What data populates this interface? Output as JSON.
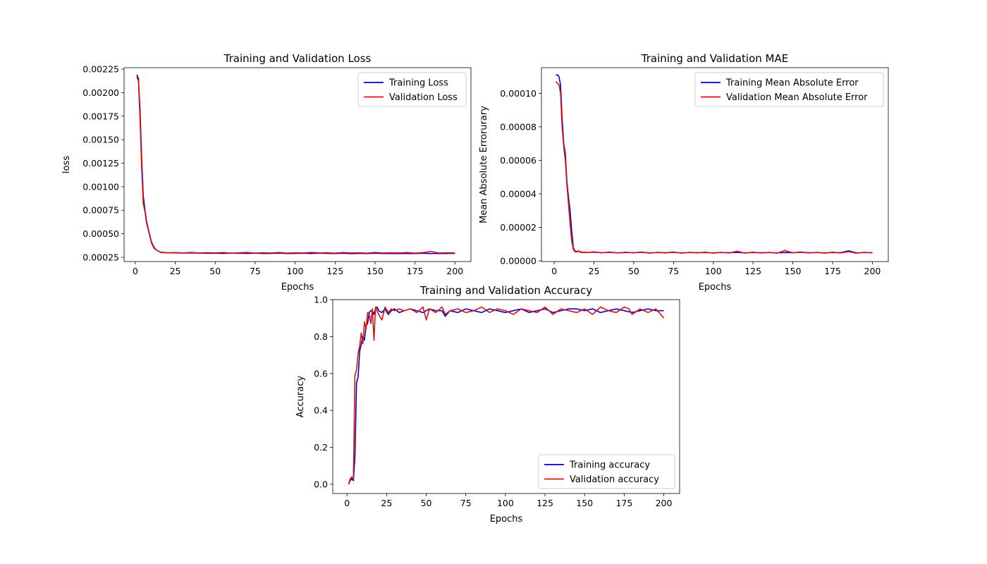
{
  "figure": {
    "background": "#ffffff"
  },
  "chart_data": [
    {
      "id": "loss",
      "type": "line",
      "title": "Training and Validation Loss",
      "xlabel": "Epochs",
      "ylabel": "loss",
      "xlim": [
        -7,
        210
      ],
      "ylim": [
        0.000205,
        0.002265
      ],
      "xticks": [
        0,
        25,
        50,
        75,
        100,
        125,
        150,
        175,
        200
      ],
      "xtick_labels": [
        "0",
        "25",
        "50",
        "75",
        "100",
        "125",
        "150",
        "175",
        "200"
      ],
      "yticks": [
        0.00025,
        0.0005,
        0.00075,
        0.001,
        0.00125,
        0.0015,
        0.00175,
        0.002,
        0.00225
      ],
      "ytick_labels": [
        "0.00025",
        "0.00050",
        "0.00075",
        "0.00100",
        "0.00125",
        "0.00150",
        "0.00175",
        "0.00200",
        "0.00225"
      ],
      "grid": false,
      "legend_position": "top-right",
      "series": [
        {
          "name": "Training Loss",
          "color": "#0000cc",
          "x": [
            1,
            2,
            3,
            4,
            5,
            6,
            7,
            8,
            9,
            10,
            11,
            12,
            13,
            14,
            15,
            16,
            17,
            18,
            19,
            20,
            25,
            30,
            35,
            40,
            45,
            50,
            55,
            60,
            65,
            70,
            75,
            80,
            85,
            90,
            95,
            100,
            105,
            110,
            115,
            120,
            125,
            130,
            135,
            140,
            145,
            150,
            155,
            160,
            165,
            170,
            175,
            180,
            185,
            190,
            195,
            200
          ],
          "y": [
            0.00219,
            0.00215,
            0.0018,
            0.0013,
            0.0009,
            0.00076,
            0.00064,
            0.00056,
            0.00049,
            0.00042,
            0.00038,
            0.00035,
            0.00033,
            0.00032,
            0.00031,
            0.000305,
            0.0003,
            0.0003,
            0.000298,
            0.000298,
            0.000297,
            0.000295,
            0.000297,
            0.000294,
            0.000293,
            0.000294,
            0.000292,
            0.000295,
            0.000293,
            0.000292,
            0.000294,
            0.000291,
            0.000292,
            0.000294,
            0.000291,
            0.000292,
            0.000293,
            0.000291,
            0.000294,
            0.000292,
            0.000291,
            0.000293,
            0.00029,
            0.000292,
            0.000291,
            0.000293,
            0.000291,
            0.000292,
            0.00029,
            0.000292,
            0.000291,
            0.000293,
            0.00029,
            0.000292,
            0.000291,
            0.000292
          ]
        },
        {
          "name": "Validation Loss",
          "color": "#dd1111",
          "x": [
            1,
            2,
            3,
            4,
            5,
            6,
            7,
            8,
            9,
            10,
            11,
            12,
            13,
            14,
            15,
            16,
            17,
            18,
            19,
            20,
            25,
            30,
            35,
            40,
            45,
            50,
            55,
            60,
            65,
            70,
            75,
            80,
            85,
            90,
            95,
            100,
            105,
            110,
            115,
            120,
            125,
            130,
            135,
            140,
            145,
            150,
            155,
            160,
            165,
            170,
            175,
            180,
            185,
            190,
            195,
            200
          ],
          "y": [
            0.00217,
            0.00212,
            0.0017,
            0.0012,
            0.00082,
            0.00074,
            0.00062,
            0.00055,
            0.00048,
            0.00041,
            0.00037,
            0.00034,
            0.00033,
            0.00032,
            0.00031,
            0.0003,
            0.000305,
            0.0003,
            0.000302,
            0.000296,
            0.000301,
            0.000297,
            0.000302,
            0.000296,
            0.000299,
            0.000297,
            0.000301,
            0.000295,
            0.000298,
            0.000302,
            0.000295,
            0.000299,
            0.000296,
            0.000301,
            0.000295,
            0.000298,
            0.000296,
            0.000302,
            0.000297,
            0.000299,
            0.000295,
            0.000301,
            0.000297,
            0.000298,
            0.000295,
            0.000302,
            0.000296,
            0.000298,
            0.000297,
            0.000301,
            0.000295,
            0.0003,
            0.000312,
            0.000296,
            0.000298,
            0.000297
          ]
        }
      ]
    },
    {
      "id": "mae",
      "type": "line",
      "title": "Training and Validation MAE",
      "xlabel": "Epochs",
      "ylabel": "Mean Absolute Errorurary",
      "xlim": [
        -8,
        210
      ],
      "ylim": [
        -4e-07,
        0.0001153
      ],
      "xticks": [
        0,
        25,
        50,
        75,
        100,
        125,
        150,
        175,
        200
      ],
      "xtick_labels": [
        "0",
        "25",
        "50",
        "75",
        "100",
        "125",
        "150",
        "175",
        "200"
      ],
      "yticks": [
        0,
        2e-05,
        4e-05,
        6e-05,
        8e-05,
        0.0001
      ],
      "ytick_labels": [
        "0.00000",
        "0.00002",
        "0.00004",
        "0.00006",
        "0.00008",
        "0.00010"
      ],
      "grid": false,
      "legend_position": "top-right",
      "series": [
        {
          "name": "Training Mean Absolute Error",
          "color": "#0000cc",
          "x": [
            1,
            2,
            3,
            4,
            5,
            6,
            7,
            8,
            9,
            10,
            11,
            12,
            13,
            14,
            15,
            16,
            17,
            18,
            19,
            20,
            25,
            30,
            35,
            40,
            45,
            50,
            55,
            60,
            65,
            70,
            75,
            80,
            85,
            90,
            95,
            100,
            105,
            110,
            115,
            120,
            125,
            130,
            135,
            140,
            145,
            150,
            155,
            160,
            165,
            170,
            175,
            180,
            185,
            190,
            195,
            200
          ],
          "y": [
            0.000111,
            0.000111,
            0.00011,
            0.000105,
            8.5e-05,
            7e-05,
            6.4e-05,
            4.7e-05,
            3.8e-05,
            3e-05,
            1.8e-05,
            8e-06,
            6e-06,
            5.5e-06,
            6e-06,
            5.5e-06,
            5.2e-06,
            5e-06,
            5.1e-06,
            5e-06,
            5.2e-06,
            4.9e-06,
            5.1e-06,
            4.8e-06,
            5e-06,
            4.9e-06,
            5.1e-06,
            4.8e-06,
            5e-06,
            4.9e-06,
            5.1e-06,
            4.8e-06,
            5e-06,
            4.9e-06,
            5e-06,
            4.8e-06,
            5e-06,
            4.9e-06,
            5.1e-06,
            4.8e-06,
            5e-06,
            4.9e-06,
            5e-06,
            4.8e-06,
            5e-06,
            4.9e-06,
            5.1e-06,
            4.9e-06,
            5e-06,
            4.8e-06,
            5e-06,
            4.9e-06,
            6e-06,
            4.8e-06,
            5e-06,
            4.9e-06
          ]
        },
        {
          "name": "Validation Mean Absolute Error",
          "color": "#dd1111",
          "x": [
            1,
            2,
            3,
            4,
            5,
            6,
            7,
            8,
            9,
            10,
            11,
            12,
            13,
            14,
            15,
            16,
            17,
            18,
            19,
            20,
            25,
            30,
            35,
            40,
            45,
            50,
            55,
            60,
            65,
            70,
            75,
            80,
            85,
            90,
            95,
            100,
            105,
            110,
            115,
            120,
            125,
            130,
            135,
            140,
            145,
            150,
            155,
            160,
            165,
            170,
            175,
            180,
            185,
            190,
            195,
            200
          ],
          "y": [
            0.000107,
            0.000106,
            0.000105,
            0.0001,
            8e-05,
            6.8e-05,
            6e-05,
            4.5e-05,
            3.4e-05,
            2.2e-05,
            1.2e-05,
            7e-06,
            5.5e-06,
            5.2e-06,
            6e-06,
            5.1e-06,
            5.5e-06,
            5e-06,
            5.3e-06,
            4.9e-06,
            5.4e-06,
            4.8e-06,
            5.3e-06,
            4.7e-06,
            5.2e-06,
            4.8e-06,
            5.3e-06,
            4.6e-06,
            5.1e-06,
            4.7e-06,
            5.3e-06,
            4.6e-06,
            5.1e-06,
            4.8e-06,
            5.2e-06,
            4.6e-06,
            5.1e-06,
            4.7e-06,
            5.8e-06,
            4.6e-06,
            5.2e-06,
            4.7e-06,
            5.1e-06,
            4.6e-06,
            6.2e-06,
            4.8e-06,
            5.3e-06,
            4.7e-06,
            5.1e-06,
            4.6e-06,
            5.2e-06,
            4.7e-06,
            5.5e-06,
            4.6e-06,
            5.1e-06,
            4.8e-06
          ]
        }
      ]
    },
    {
      "id": "accuracy",
      "type": "line",
      "title": "Training and Validation Accuracy",
      "xlabel": "Epochs",
      "ylabel": "Accuracy",
      "xlim": [
        -9,
        210
      ],
      "ylim": [
        -0.05,
        1.0
      ],
      "xticks": [
        0,
        25,
        50,
        75,
        100,
        125,
        150,
        175,
        200
      ],
      "xtick_labels": [
        "0",
        "25",
        "50",
        "75",
        "100",
        "125",
        "150",
        "175",
        "200"
      ],
      "yticks": [
        0,
        0.2,
        0.4,
        0.6,
        0.8,
        1.0
      ],
      "ytick_labels": [
        "0.0",
        "0.2",
        "0.4",
        "0.6",
        "0.8",
        "1.0"
      ],
      "grid": false,
      "legend_position": "bottom-right",
      "series": [
        {
          "name": "Training accuracy",
          "color": "#0000cc",
          "x": [
            1,
            2,
            3,
            4,
            5,
            6,
            7,
            8,
            9,
            10,
            11,
            12,
            13,
            14,
            15,
            16,
            17,
            18,
            19,
            20,
            22,
            24,
            26,
            28,
            30,
            33,
            36,
            40,
            44,
            48,
            52,
            56,
            60,
            62,
            65,
            70,
            75,
            80,
            85,
            90,
            95,
            100,
            105,
            110,
            115,
            120,
            125,
            130,
            135,
            140,
            145,
            150,
            155,
            160,
            165,
            170,
            175,
            180,
            185,
            190,
            195,
            200
          ],
          "y": [
            0.0,
            0.02,
            0.03,
            0.02,
            0.15,
            0.55,
            0.58,
            0.72,
            0.76,
            0.8,
            0.78,
            0.86,
            0.87,
            0.93,
            0.94,
            0.94,
            0.92,
            0.95,
            0.96,
            0.94,
            0.93,
            0.95,
            0.92,
            0.94,
            0.95,
            0.93,
            0.94,
            0.95,
            0.94,
            0.93,
            0.95,
            0.94,
            0.94,
            0.91,
            0.94,
            0.93,
            0.95,
            0.94,
            0.93,
            0.95,
            0.94,
            0.93,
            0.94,
            0.95,
            0.93,
            0.94,
            0.95,
            0.93,
            0.94,
            0.95,
            0.95,
            0.94,
            0.95,
            0.93,
            0.94,
            0.95,
            0.94,
            0.93,
            0.94,
            0.95,
            0.94,
            0.94
          ]
        },
        {
          "name": "Validation accuracy",
          "color": "#dd1111",
          "x": [
            1,
            2,
            3,
            4,
            5,
            6,
            7,
            8,
            9,
            10,
            11,
            12,
            13,
            14,
            15,
            16,
            17,
            18,
            19,
            20,
            22,
            24,
            26,
            28,
            30,
            33,
            36,
            40,
            44,
            48,
            50,
            52,
            56,
            60,
            62,
            65,
            70,
            75,
            80,
            85,
            90,
            95,
            100,
            105,
            110,
            115,
            120,
            125,
            130,
            135,
            140,
            145,
            150,
            155,
            160,
            165,
            170,
            175,
            178,
            180,
            185,
            190,
            195,
            200
          ],
          "y": [
            0.0,
            0.03,
            0.04,
            0.03,
            0.59,
            0.62,
            0.71,
            0.75,
            0.82,
            0.76,
            0.88,
            0.84,
            0.93,
            0.92,
            0.87,
            0.95,
            0.78,
            0.96,
            0.94,
            0.92,
            0.89,
            0.96,
            0.93,
            0.95,
            0.94,
            0.95,
            0.94,
            0.95,
            0.93,
            0.96,
            0.89,
            0.95,
            0.93,
            0.96,
            0.92,
            0.94,
            0.95,
            0.93,
            0.94,
            0.96,
            0.93,
            0.95,
            0.94,
            0.92,
            0.95,
            0.94,
            0.93,
            0.96,
            0.92,
            0.95,
            0.94,
            0.93,
            0.95,
            0.92,
            0.96,
            0.94,
            0.93,
            0.96,
            0.95,
            0.92,
            0.95,
            0.93,
            0.95,
            0.9
          ]
        }
      ]
    }
  ]
}
